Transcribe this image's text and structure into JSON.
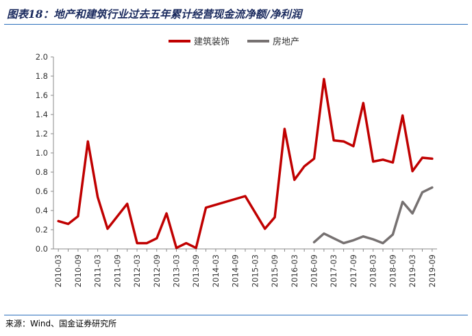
{
  "header": {
    "title": "图表18：地产和建筑行业过去五年累计经营现金流净额/净利润"
  },
  "footer": {
    "source": "来源：Wind、国金证券研究所"
  },
  "colors": {
    "construction": "#c00000",
    "real_estate": "#767171",
    "rule": "#2a6ebb"
  },
  "chart_data": {
    "type": "line",
    "title": "",
    "xlabel": "",
    "ylabel": "",
    "ylim": [
      0,
      2.0
    ],
    "yticks": [
      "0.0",
      "0.2",
      "0.4",
      "0.6",
      "0.8",
      "1.0",
      "1.2",
      "1.4",
      "1.6",
      "1.8",
      "2.0"
    ],
    "grid": false,
    "legend_position": "top-center",
    "x": [
      "2010-03",
      "2010-06",
      "2010-09",
      "2010-12",
      "2011-03",
      "2011-06",
      "2011-09",
      "2011-12",
      "2012-03",
      "2012-06",
      "2012-09",
      "2012-12",
      "2013-03",
      "2013-06",
      "2013-09",
      "2013-12",
      "2014-03",
      "2014-06",
      "2014-09",
      "2014-12",
      "2015-03",
      "2015-06",
      "2015-09",
      "2015-12",
      "2016-03",
      "2016-06",
      "2016-09",
      "2016-12",
      "2017-03",
      "2017-06",
      "2017-09",
      "2017-12",
      "2018-03",
      "2018-06",
      "2018-09",
      "2018-12",
      "2019-03",
      "2019-06",
      "2019-09"
    ],
    "xticks": [
      "2010-03",
      "2010-09",
      "2011-03",
      "2011-09",
      "2012-03",
      "2012-09",
      "2013-03",
      "2013-09",
      "2014-03",
      "2014-09",
      "2015-03",
      "2015-09",
      "2016-03",
      "2016-09",
      "2017-03",
      "2017-09",
      "2018-03",
      "2018-09",
      "2019-03",
      "2019-09"
    ],
    "series": [
      {
        "name": "建筑装饰",
        "values": [
          0.29,
          0.26,
          0.34,
          1.12,
          0.54,
          0.21,
          0.34,
          0.47,
          0.06,
          0.06,
          0.11,
          0.37,
          0.01,
          0.06,
          0.01,
          0.43,
          null,
          null,
          null,
          0.55,
          null,
          0.21,
          0.33,
          1.25,
          0.72,
          0.86,
          0.94,
          1.77,
          1.13,
          1.12,
          1.07,
          1.52,
          0.91,
          0.93,
          0.9,
          1.39,
          0.81,
          0.95,
          0.94
        ]
      },
      {
        "name": "房地产",
        "values": [
          null,
          null,
          null,
          null,
          null,
          null,
          null,
          null,
          null,
          null,
          null,
          null,
          null,
          null,
          null,
          null,
          null,
          null,
          null,
          null,
          null,
          null,
          null,
          null,
          null,
          null,
          0.07,
          0.16,
          0.11,
          0.06,
          0.09,
          0.13,
          0.1,
          0.06,
          0.15,
          0.49,
          0.37,
          0.59,
          0.64
        ]
      }
    ]
  }
}
